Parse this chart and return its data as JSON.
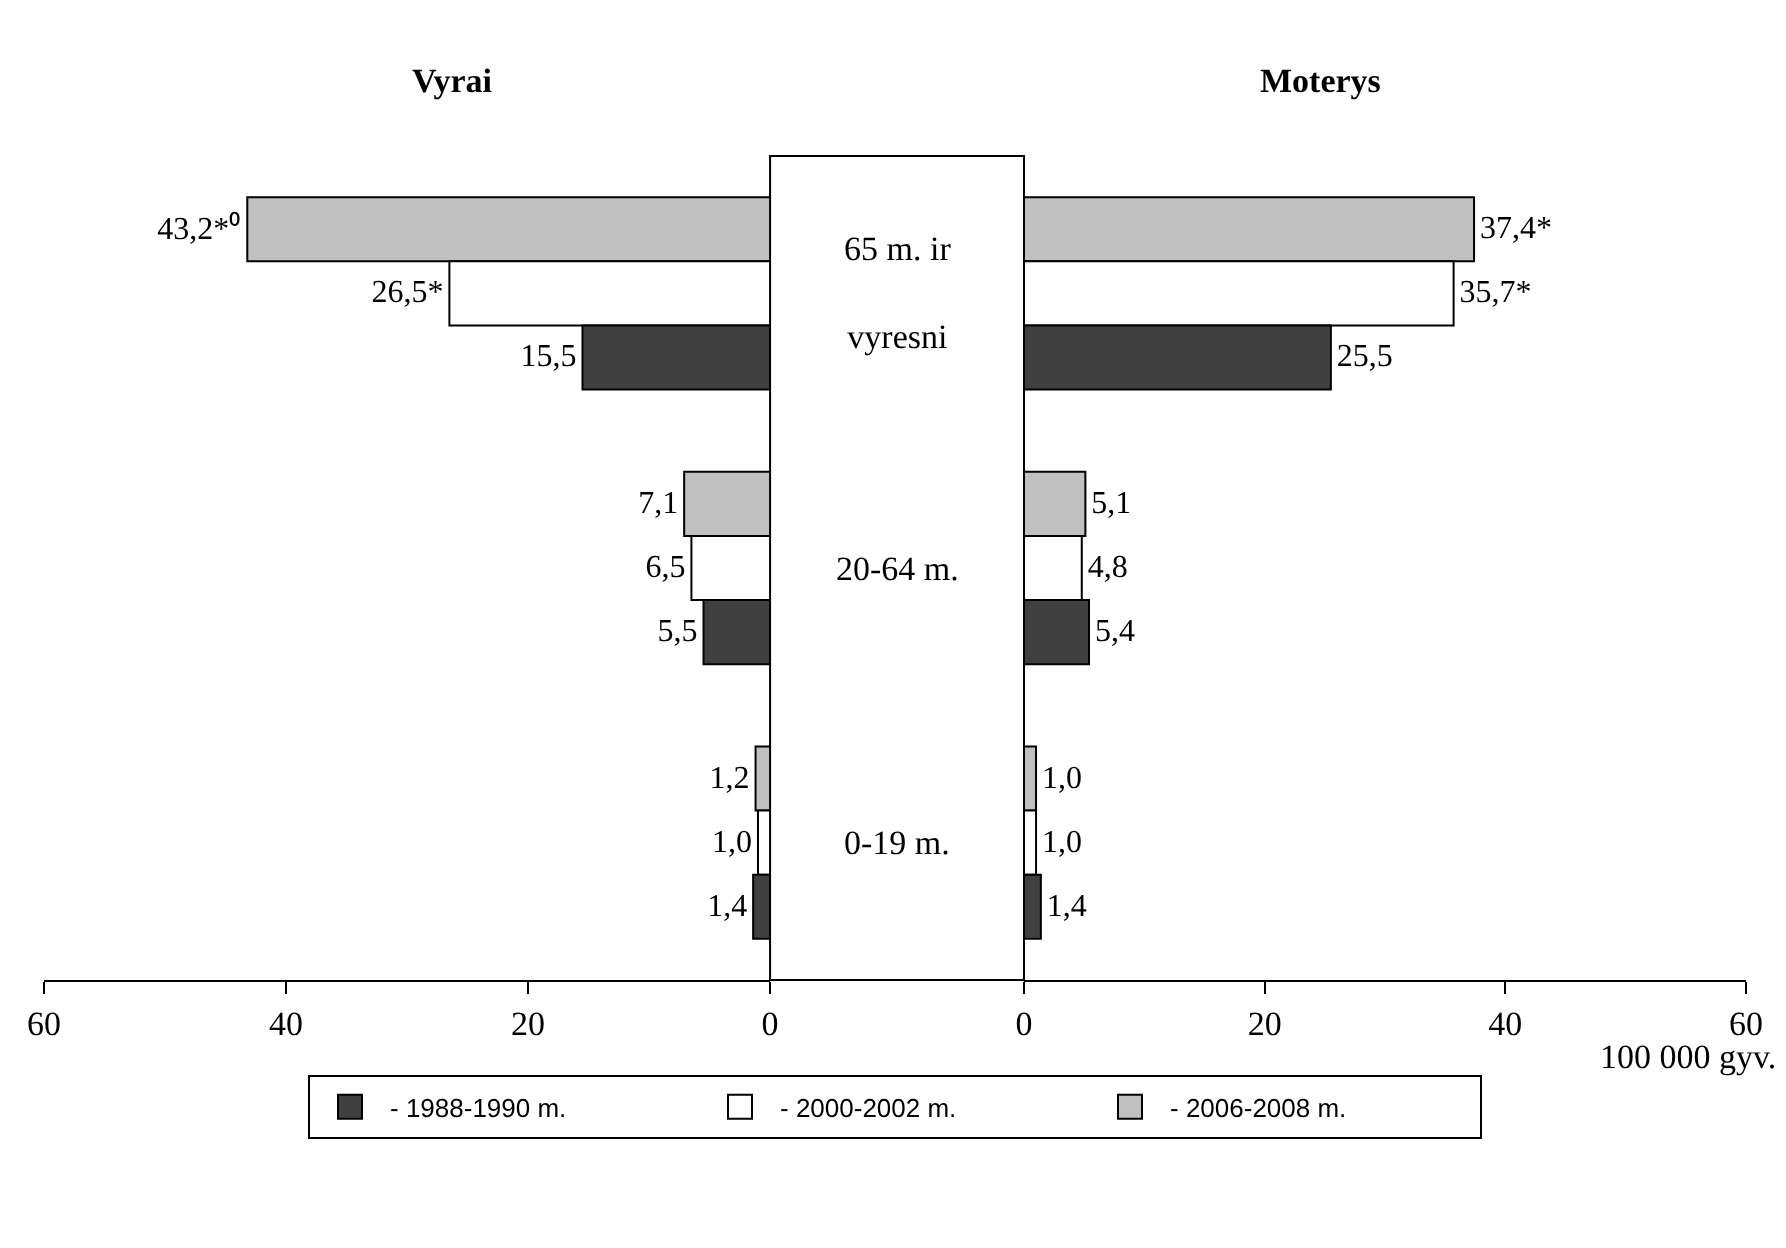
{
  "chart_data": [
    {
      "type": "bar",
      "orientation": "horizontal",
      "title": "Vyrai",
      "categories": [
        "65 m. ir\nvyresni",
        "20-64 m.",
        "0-19 m."
      ],
      "xlim": [
        60,
        0
      ],
      "xticks": [
        60,
        40,
        20,
        0
      ],
      "legend": "bottom",
      "series": [
        {
          "name": "- 2006-2008 m.",
          "color": "#c0c0c0",
          "values": [
            43.2,
            7.1,
            1.2
          ],
          "value_labels": [
            "43,2*⁰",
            "7,1",
            "1,2"
          ]
        },
        {
          "name": "- 2000-2002 m.",
          "color": "#ffffff",
          "values": [
            26.5,
            6.5,
            1.0
          ],
          "value_labels": [
            "26,5*",
            "6,5",
            "1,0"
          ]
        },
        {
          "name": "- 1988-1990 m.",
          "color": "#404040",
          "values": [
            15.5,
            5.5,
            1.4
          ],
          "value_labels": [
            "15,5",
            "5,5",
            "1,4"
          ]
        }
      ]
    },
    {
      "type": "bar",
      "orientation": "horizontal",
      "title": "Moterys",
      "xlabel": "100 000 gyv.",
      "xlim": [
        0,
        60
      ],
      "xticks": [
        0,
        20,
        40,
        60
      ],
      "series": [
        {
          "color": "#c0c0c0",
          "values": [
            37.4,
            5.1,
            1.0
          ],
          "value_labels": [
            "37,4*",
            "5,1",
            "1,0"
          ]
        },
        {
          "color": "#ffffff",
          "values": [
            35.7,
            4.8,
            1.0
          ],
          "value_labels": [
            "35,7*",
            "4,8",
            "1,0"
          ]
        },
        {
          "color": "#404040",
          "values": [
            25.5,
            5.4,
            1.4
          ],
          "value_labels": [
            "25,5",
            "5,4",
            "1,4"
          ]
        }
      ]
    }
  ]
}
